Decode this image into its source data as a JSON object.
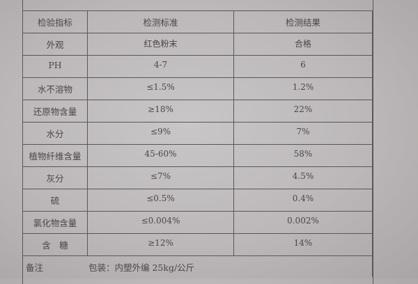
{
  "headers": [
    "检验指标",
    "检测标准",
    "检测结果"
  ],
  "rows": [
    {
      "item": "外观",
      "standard": "红色粉末",
      "result": "合格"
    },
    {
      "item": "PH",
      "standard": "4-7",
      "result": "6"
    },
    {
      "item": "水不溶物",
      "standard": "≤1.5%",
      "result": "1.2%"
    },
    {
      "item": "还原物含量",
      "standard": "≥18%",
      "result": "22%"
    },
    {
      "item": "水分",
      "standard": "≤9%",
      "result": "7%"
    },
    {
      "item": "植物纤维含量",
      "standard": "45-60%",
      "result": "58%"
    },
    {
      "item": "灰分",
      "standard": "≤7%",
      "result": "4.5%"
    },
    {
      "item": "硫",
      "standard": "≤0.5%",
      "result": "0.4%"
    },
    {
      "item": "氯化物含量",
      "standard": "≤0.004%",
      "result": "0.002%"
    },
    {
      "item": "含　糖",
      "standard": "≥12%",
      "result": "14%"
    }
  ],
  "remark": {
    "label": "备注",
    "text": "包装：内塑外编 25kg/公斤"
  }
}
